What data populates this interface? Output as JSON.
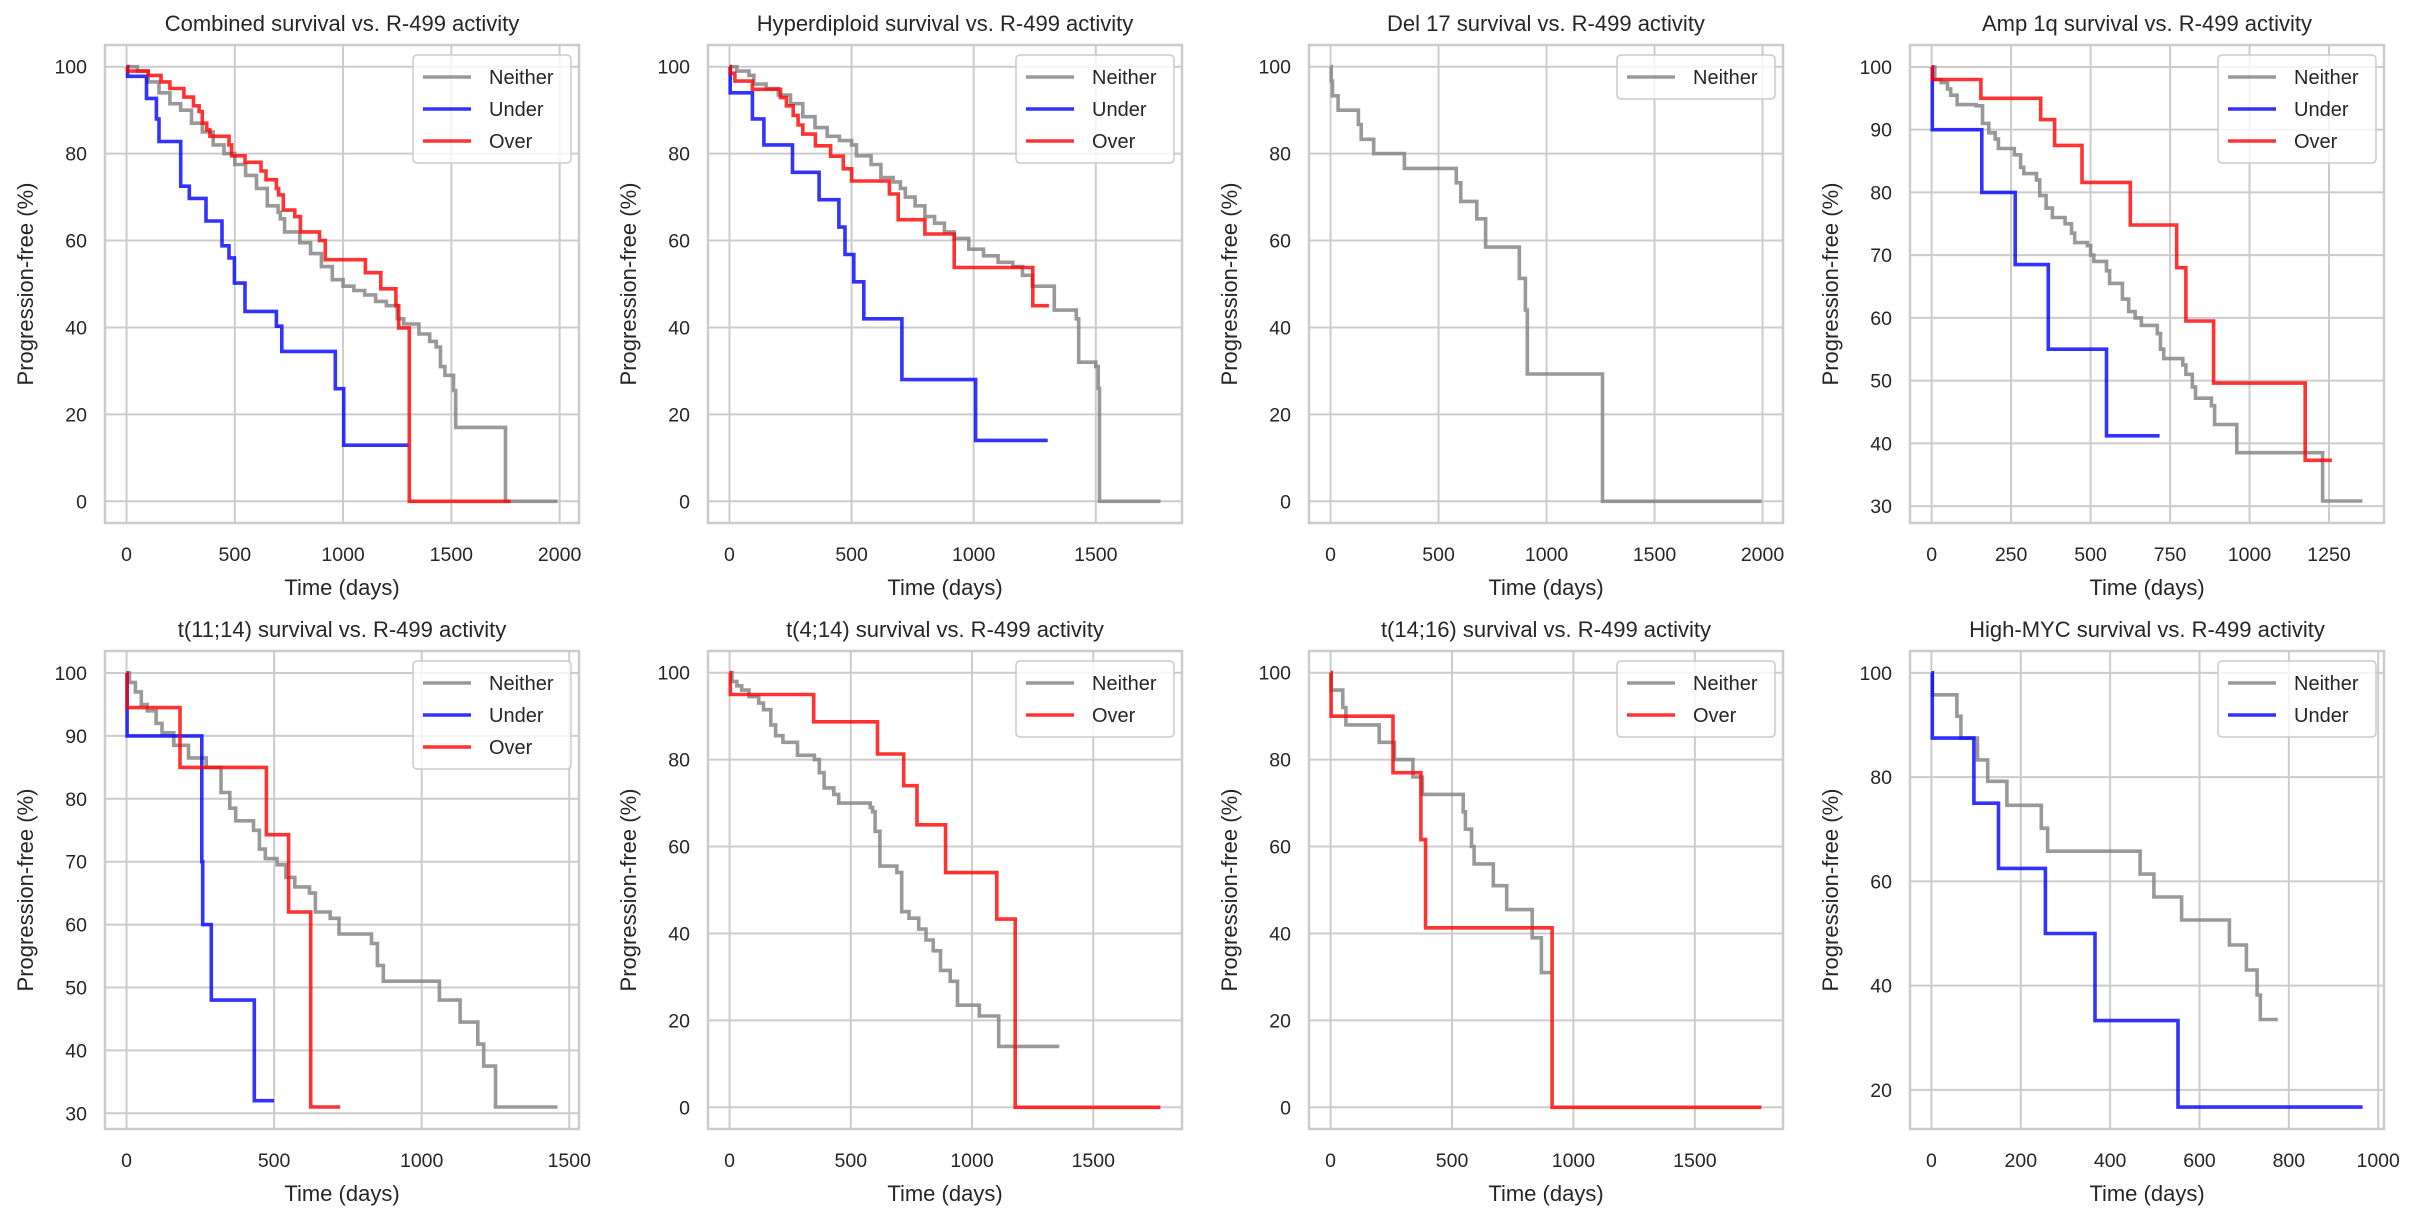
{
  "figure": {
    "series_colors": {
      "Neither": "#808080",
      "Under": "#0000ff",
      "Over": "#ff0000"
    }
  },
  "chart_data": [
    {
      "type": "line",
      "step": "post",
      "title": "Combined survival vs. R-499 activity",
      "xlabel": "Time (days)",
      "ylabel": "Progression-free (%)",
      "xlim": [
        -99.5,
        2089.5
      ],
      "ylim": [
        -5,
        105
      ],
      "xticks": [
        0,
        500,
        1000,
        1500,
        2000
      ],
      "yticks": [
        0,
        20,
        40,
        60,
        80,
        100
      ],
      "grid": true,
      "legend_position": "top-right",
      "legend": [
        "Neither",
        "Under",
        "Over"
      ],
      "series": [
        {
          "name": "Neither",
          "x": [
            0,
            50,
            100,
            150,
            200,
            250,
            300,
            350,
            400,
            450,
            500,
            550,
            600,
            650,
            700,
            710,
            730,
            800,
            850,
            900,
            950,
            1000,
            1050,
            1100,
            1150,
            1200,
            1250,
            1280,
            1350,
            1400,
            1430,
            1450,
            1470,
            1510,
            1520,
            1750,
            1990
          ],
          "y": [
            100,
            99,
            96.5,
            94,
            91.5,
            90,
            87,
            85,
            82,
            80,
            77.5,
            75,
            72,
            68,
            66.5,
            65,
            62,
            59.5,
            57,
            54,
            51,
            49.5,
            48.5,
            47.5,
            46,
            45,
            42,
            40.8,
            38.5,
            36.8,
            35.5,
            31,
            29,
            25.5,
            17,
            0,
            0
          ]
        },
        {
          "name": "Under",
          "x": [
            0,
            5,
            92,
            138,
            150,
            250,
            290,
            367,
            441,
            473,
            498,
            547,
            692,
            717,
            964,
            1003,
            1302
          ],
          "y": [
            100,
            97.8,
            92.7,
            88,
            82.8,
            72.5,
            69.7,
            64.5,
            58.8,
            56,
            50.2,
            43.7,
            40.3,
            34.5,
            25.9,
            12.9,
            12.9
          ]
        },
        {
          "name": "Over",
          "x": [
            0,
            5,
            100,
            159,
            200,
            265,
            309,
            335,
            350,
            370,
            385,
            473,
            485,
            547,
            621,
            644,
            692,
            702,
            724,
            777,
            803,
            891,
            918,
            1103,
            1174,
            1244,
            1257,
            1306,
            1774
          ],
          "y": [
            100,
            99,
            98,
            96.5,
            95,
            93,
            91,
            89.7,
            87,
            85.5,
            84,
            82,
            79.5,
            78,
            76,
            74,
            72,
            70.5,
            67,
            65.5,
            62,
            60,
            55.6,
            52.6,
            48.9,
            45,
            39.9,
            0,
            0
          ]
        }
      ]
    },
    {
      "type": "line",
      "step": "post",
      "title": "Hyperdiploid survival vs. R-499 activity",
      "xlabel": "Time (days)",
      "ylabel": "Progression-free (%)",
      "xlim": [
        -88,
        1853
      ],
      "ylim": [
        -5,
        105
      ],
      "xticks": [
        0,
        500,
        1000,
        1500
      ],
      "yticks": [
        0,
        20,
        40,
        60,
        80,
        100
      ],
      "grid": true,
      "legend_position": "top-right",
      "legend": [
        "Neither",
        "Under",
        "Over"
      ],
      "series": [
        {
          "name": "Neither",
          "x": [
            0,
            30,
            80,
            100,
            150,
            200,
            250,
            300,
            350,
            400,
            450,
            500,
            520,
            580,
            620,
            670,
            700,
            720,
            760,
            800,
            840,
            880,
            920,
            980,
            1040,
            1100,
            1160,
            1200,
            1240,
            1330,
            1420,
            1430,
            1500,
            1510,
            1515,
            1765
          ],
          "y": [
            100,
            99,
            98,
            96,
            95,
            93.5,
            91.5,
            88.5,
            86,
            84,
            83,
            82,
            79.5,
            77.5,
            74.5,
            73.5,
            72,
            70,
            68,
            65.5,
            64,
            62,
            60.5,
            58,
            56.5,
            55,
            54,
            52,
            49.5,
            44,
            42,
            32,
            31,
            26,
            0,
            0
          ]
        },
        {
          "name": "Under",
          "x": [
            0,
            3,
            94,
            141,
            258,
            367,
            448,
            473,
            509,
            550,
            706,
            1008,
            1303
          ],
          "y": [
            100,
            94,
            88,
            82,
            75.7,
            69.4,
            63.1,
            56.8,
            50.5,
            42,
            28,
            14,
            14
          ]
        },
        {
          "name": "Over",
          "x": [
            0,
            3,
            22,
            94,
            209,
            233,
            261,
            281,
            300,
            352,
            414,
            466,
            500,
            655,
            691,
            800,
            920,
            1242,
            1308
          ],
          "y": [
            100,
            98.5,
            96.7,
            94.8,
            92.9,
            91,
            88.8,
            86.6,
            84.5,
            81.8,
            79.4,
            76.5,
            73.7,
            70.7,
            64.8,
            61.5,
            53.8,
            45,
            45
          ]
        }
      ]
    },
    {
      "type": "line",
      "step": "post",
      "title": "Del 17 survival vs. R-499 activity",
      "xlabel": "Time (days)",
      "ylabel": "Progression-free (%)",
      "xlim": [
        -99.75,
        2094.75
      ],
      "ylim": [
        -5,
        105
      ],
      "xticks": [
        0,
        500,
        1000,
        1500,
        2000
      ],
      "yticks": [
        0,
        20,
        40,
        60,
        80,
        100
      ],
      "grid": true,
      "legend_position": "top-right",
      "legend": [
        "Neither"
      ],
      "series": [
        {
          "name": "Neither",
          "x": [
            0,
            3,
            9,
            35,
            129,
            142,
            200,
            342,
            582,
            603,
            677,
            718,
            874,
            902,
            911,
            1259,
            1995
          ],
          "y": [
            100,
            96.7,
            93.3,
            90,
            86.7,
            83.3,
            80,
            76.6,
            73.3,
            69,
            65,
            58.5,
            51.3,
            44,
            29.3,
            0,
            0
          ]
        }
      ]
    },
    {
      "type": "line",
      "step": "post",
      "title": "Amp 1q survival vs. R-499 activity",
      "xlabel": "Time (days)",
      "ylabel": "Progression-free (%)",
      "xlim": [
        -68,
        1423
      ],
      "ylim": [
        27.3,
        103.5
      ],
      "xticks": [
        0,
        250,
        500,
        750,
        1000,
        1250
      ],
      "yticks": [
        30,
        40,
        50,
        60,
        70,
        80,
        90,
        100
      ],
      "grid": true,
      "legend_position": "top-right",
      "legend": [
        "Neither",
        "Under",
        "Over"
      ],
      "series": [
        {
          "name": "Neither",
          "x": [
            0,
            10,
            30,
            50,
            60,
            80,
            140,
            160,
            180,
            200,
            210,
            260,
            280,
            290,
            330,
            340,
            360,
            380,
            420,
            440,
            450,
            490,
            500,
            510,
            550,
            560,
            600,
            620,
            640,
            660,
            710,
            720,
            730,
            790,
            800,
            820,
            830,
            880,
            890,
            960,
            1230,
            1355
          ],
          "y": [
            100,
            98,
            97.5,
            96.5,
            95.5,
            94,
            93.8,
            91,
            89.5,
            88.5,
            87,
            86,
            84,
            83,
            82,
            79.5,
            77.5,
            76,
            75,
            73.5,
            72,
            71.5,
            70,
            69,
            67.5,
            65.5,
            63,
            61,
            60,
            58.8,
            57.5,
            55,
            53.5,
            52.5,
            51,
            49,
            47.2,
            46,
            43,
            38.5,
            30.8,
            30.8
          ]
        },
        {
          "name": "Under",
          "x": [
            0,
            2,
            158,
            263,
            367,
            550,
            717
          ],
          "y": [
            100,
            90,
            80,
            68.5,
            55,
            41.2,
            41.2
          ]
        },
        {
          "name": "Over",
          "x": [
            0,
            2,
            155,
            343,
            387,
            473,
            625,
            771,
            800,
            887,
            1175,
            1259
          ],
          "y": [
            100,
            98,
            95,
            91.6,
            87.5,
            81.6,
            74.8,
            68,
            59.5,
            49.6,
            37.3,
            37.3
          ]
        }
      ]
    },
    {
      "type": "line",
      "step": "post",
      "title": "t(11;14) survival vs. R-499 activity",
      "xlabel": "Time (days)",
      "ylabel": "Progression-free (%)",
      "xlim": [
        -73,
        1533
      ],
      "ylim": [
        27.5,
        103.5
      ],
      "xticks": [
        0,
        500,
        1000,
        1500
      ],
      "yticks": [
        30,
        40,
        50,
        60,
        70,
        80,
        90,
        100
      ],
      "grid": true,
      "legend_position": "top-right",
      "legend": [
        "Neither",
        "Under",
        "Over"
      ],
      "series": [
        {
          "name": "Neither",
          "x": [
            0,
            10,
            30,
            50,
            70,
            100,
            120,
            160,
            210,
            270,
            320,
            350,
            370,
            430,
            450,
            470,
            510,
            540,
            570,
            620,
            640,
            690,
            720,
            830,
            850,
            870,
            1060,
            1130,
            1190,
            1210,
            1250,
            1460
          ],
          "y": [
            100,
            98.5,
            97,
            95,
            94,
            92,
            90.5,
            88.5,
            86.5,
            85,
            81,
            78.5,
            76.5,
            75,
            72,
            70.5,
            69.5,
            67.5,
            66,
            65,
            62,
            61,
            58.5,
            57,
            53.5,
            51,
            48,
            44.5,
            41,
            37.5,
            31,
            31
          ]
        },
        {
          "name": "Under",
          "x": [
            0,
            2,
            255,
            258,
            287,
            433,
            500
          ],
          "y": [
            100,
            90,
            70,
            60,
            48,
            32,
            32
          ]
        },
        {
          "name": "Over",
          "x": [
            0,
            2,
            181,
            474,
            549,
            624,
            724
          ],
          "y": [
            100,
            94.5,
            85,
            74.3,
            62,
            31,
            31
          ]
        }
      ]
    },
    {
      "type": "line",
      "step": "post",
      "title": "t(4;14) survival vs. R-499 activity",
      "xlabel": "Time (days)",
      "ylabel": "Progression-free (%)",
      "xlim": [
        -89,
        1866
      ],
      "ylim": [
        -5,
        105
      ],
      "xticks": [
        0,
        500,
        1000,
        1500
      ],
      "yticks": [
        0,
        20,
        40,
        60,
        80,
        100
      ],
      "grid": true,
      "legend_position": "top-right",
      "legend": [
        "Neither",
        "Over"
      ],
      "series": [
        {
          "name": "Neither",
          "x": [
            0,
            10,
            30,
            50,
            80,
            120,
            140,
            170,
            190,
            220,
            280,
            350,
            370,
            390,
            430,
            450,
            580,
            590,
            600,
            620,
            690,
            710,
            740,
            780,
            810,
            840,
            870,
            910,
            940,
            1030,
            1110,
            1360
          ],
          "y": [
            100,
            98,
            97,
            96,
            94.5,
            93,
            91.5,
            88,
            85.5,
            84,
            81,
            80,
            77,
            73.5,
            72,
            70,
            69,
            68,
            63.5,
            55.5,
            54,
            45,
            43.5,
            41,
            38.5,
            36,
            31.5,
            29,
            23.5,
            21,
            14,
            14
          ]
        },
        {
          "name": "Over",
          "x": [
            0,
            3,
            347,
            610,
            718,
            773,
            891,
            1102,
            1178,
            1777
          ],
          "y": [
            100,
            95,
            88.7,
            81.3,
            74,
            65,
            54,
            43.3,
            0,
            0
          ]
        }
      ]
    },
    {
      "type": "line",
      "step": "post",
      "title": "t(14;16) survival vs. R-499 activity",
      "xlabel": "Time (days)",
      "ylabel": "Progression-free (%)",
      "xlim": [
        -89,
        1863
      ],
      "ylim": [
        -5,
        105
      ],
      "xticks": [
        0,
        500,
        1000,
        1500
      ],
      "yticks": [
        0,
        20,
        40,
        60,
        80,
        100
      ],
      "grid": true,
      "legend_position": "top-right",
      "legend": [
        "Neither",
        "Over"
      ],
      "series": [
        {
          "name": "Neither",
          "x": [
            0,
            2,
            50,
            63,
            200,
            263,
            339,
            378,
            546,
            555,
            580,
            591,
            670,
            725,
            830,
            868,
            907
          ],
          "y": [
            100,
            96,
            92,
            88,
            84,
            80,
            76,
            72,
            68,
            64,
            60,
            56,
            51,
            45.5,
            39,
            31,
            31
          ]
        },
        {
          "name": "Over",
          "x": [
            0,
            2,
            257,
            372,
            391,
            912,
            1774
          ],
          "y": [
            100,
            90,
            77,
            61.6,
            41.3,
            0,
            0
          ]
        }
      ]
    },
    {
      "type": "line",
      "step": "post",
      "title": "High-MYC survival vs. R-499 activity",
      "xlabel": "Time (days)",
      "ylabel": "Progression-free (%)",
      "xlim": [
        -48,
        1013
      ],
      "ylim": [
        12.5,
        104.2
      ],
      "xticks": [
        0,
        200,
        400,
        600,
        800,
        1000
      ],
      "yticks": [
        20,
        40,
        60,
        80,
        100
      ],
      "grid": true,
      "legend_position": "top-right",
      "legend": [
        "Neither",
        "Under"
      ],
      "series": [
        {
          "name": "Neither",
          "x": [
            0,
            2,
            57,
            66,
            103,
            126,
            169,
            246,
            260,
            467,
            498,
            560,
            667,
            705,
            729,
            736,
            775
          ],
          "y": [
            100,
            95.8,
            91.7,
            87.5,
            83.3,
            79.2,
            74.6,
            70.2,
            65.8,
            61.4,
            57,
            52.6,
            47.8,
            43,
            38.2,
            33.5,
            33.5
          ]
        },
        {
          "name": "Under",
          "x": [
            0,
            2,
            95,
            150,
            255,
            366,
            552,
            965
          ],
          "y": [
            100,
            87.5,
            75,
            62.5,
            50,
            33.3,
            16.7,
            16.7
          ]
        }
      ]
    }
  ]
}
